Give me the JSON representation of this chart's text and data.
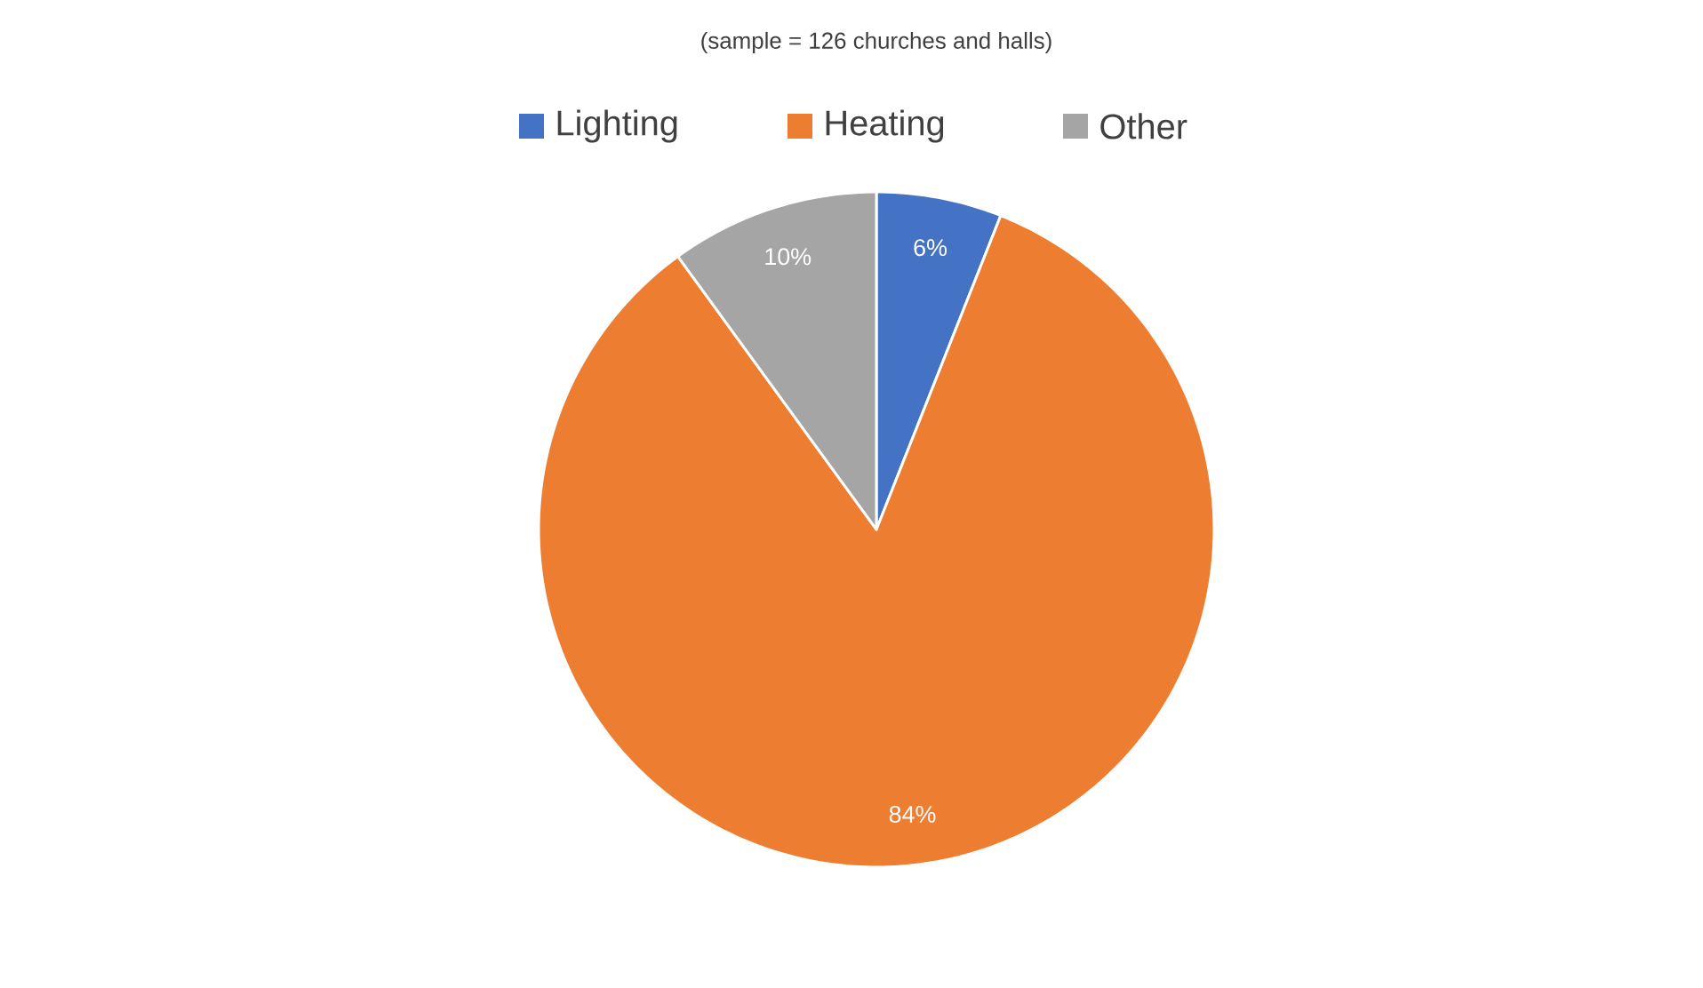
{
  "chart_data": {
    "type": "pie",
    "subtitle": "(sample = 126 churches and halls)",
    "categories": [
      "Lighting",
      "Heating",
      "Other"
    ],
    "values": [
      6,
      84,
      10
    ],
    "colors": [
      "#4472c4",
      "#ed7d31",
      "#a5a5a5"
    ],
    "value_labels": [
      "6%",
      "84%",
      "10%"
    ],
    "legend": "top"
  }
}
